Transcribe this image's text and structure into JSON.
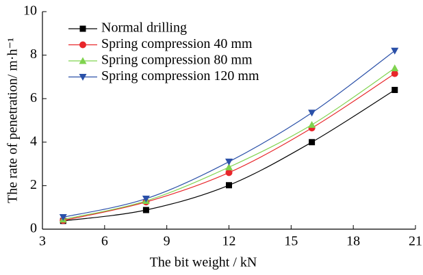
{
  "chart_data": {
    "type": "line",
    "x_label": "The bit weight / kN",
    "y_label": "The  rate of penetration/ m·h⁻¹",
    "x": [
      4,
      8,
      12,
      16,
      20
    ],
    "series": [
      {
        "name": "Normal drilling",
        "color": "#000000",
        "marker": "square",
        "values": [
          0.38,
          0.88,
          2.02,
          4.0,
          6.4
        ]
      },
      {
        "name": "Spring compression 40 mm",
        "color": "#e8262a",
        "marker": "circle",
        "values": [
          0.4,
          1.25,
          2.6,
          4.65,
          7.15
        ]
      },
      {
        "name": "Spring compression 80 mm",
        "color": "#7fd34e",
        "marker": "triangle-up",
        "values": [
          0.45,
          1.3,
          2.85,
          4.8,
          7.4
        ]
      },
      {
        "name": "Spring compression 120 mm",
        "color": "#2a50a8",
        "marker": "triangle-down",
        "values": [
          0.55,
          1.4,
          3.1,
          5.35,
          8.2
        ]
      }
    ],
    "xlim": [
      3,
      21
    ],
    "xticks": [
      3,
      6,
      9,
      12,
      15,
      18,
      21
    ],
    "ylim": [
      0,
      10
    ],
    "yticks": [
      0,
      2,
      4,
      6,
      8,
      10
    ],
    "legend": "upper left"
  }
}
